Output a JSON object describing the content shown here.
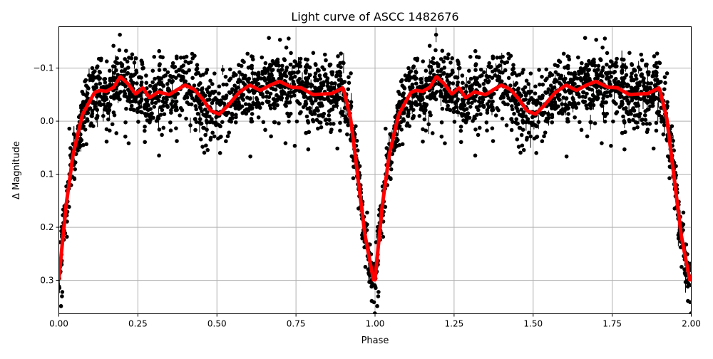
{
  "chart_data": {
    "type": "scatter",
    "title": "Light curve of ASCC 1482676",
    "xlabel": "Phase",
    "ylabel": "Δ Magnitude",
    "xlim": [
      0,
      2
    ],
    "ylim": [
      0.363,
      -0.178
    ],
    "y_inverted": true,
    "grid": true,
    "x_ticks": [
      "0.00",
      "0.25",
      "0.50",
      "0.75",
      "1.00",
      "1.25",
      "1.50",
      "1.75",
      "2.00"
    ],
    "x_tick_values": [
      0,
      0.25,
      0.5,
      0.75,
      1,
      1.25,
      1.5,
      1.75,
      2
    ],
    "y_ticks": [
      "−0.1",
      "0.0",
      "0.1",
      "0.2",
      "0.3"
    ],
    "y_tick_values": [
      -0.1,
      0,
      0.1,
      0.2,
      0.3
    ],
    "colors": {
      "points": "#000000",
      "model": "#ff0000",
      "grid": "#b0b0b0"
    },
    "series": [
      {
        "kind": "scatter-errorbar",
        "color": "#000000",
        "scatter_about_model_std": 0.03
      },
      {
        "kind": "line",
        "color": "#ff0000",
        "repeat_period": 1,
        "phase": [
          0,
          0.0225,
          0.045,
          0.075,
          0.113,
          0.13,
          0.15,
          0.174,
          0.194,
          0.218,
          0.243,
          0.266,
          0.286,
          0.315,
          0.349,
          0.399,
          0.428,
          0.457,
          0.48,
          0.507,
          0.534,
          0.57,
          0.604,
          0.637,
          0.669,
          0.698,
          0.736,
          0.766,
          0.804,
          0.863,
          0.899,
          0.923,
          0.946,
          0.968,
          0.995
        ],
        "magnitude": [
          0.299,
          0.161,
          0.063,
          -0.013,
          -0.054,
          -0.058,
          -0.056,
          -0.064,
          -0.084,
          -0.071,
          -0.051,
          -0.063,
          -0.044,
          -0.055,
          -0.05,
          -0.068,
          -0.06,
          -0.04,
          -0.02,
          -0.013,
          -0.029,
          -0.054,
          -0.068,
          -0.058,
          -0.068,
          -0.075,
          -0.064,
          -0.063,
          -0.05,
          -0.052,
          -0.063,
          -0.004,
          0.107,
          0.214,
          0.299
        ]
      }
    ]
  }
}
